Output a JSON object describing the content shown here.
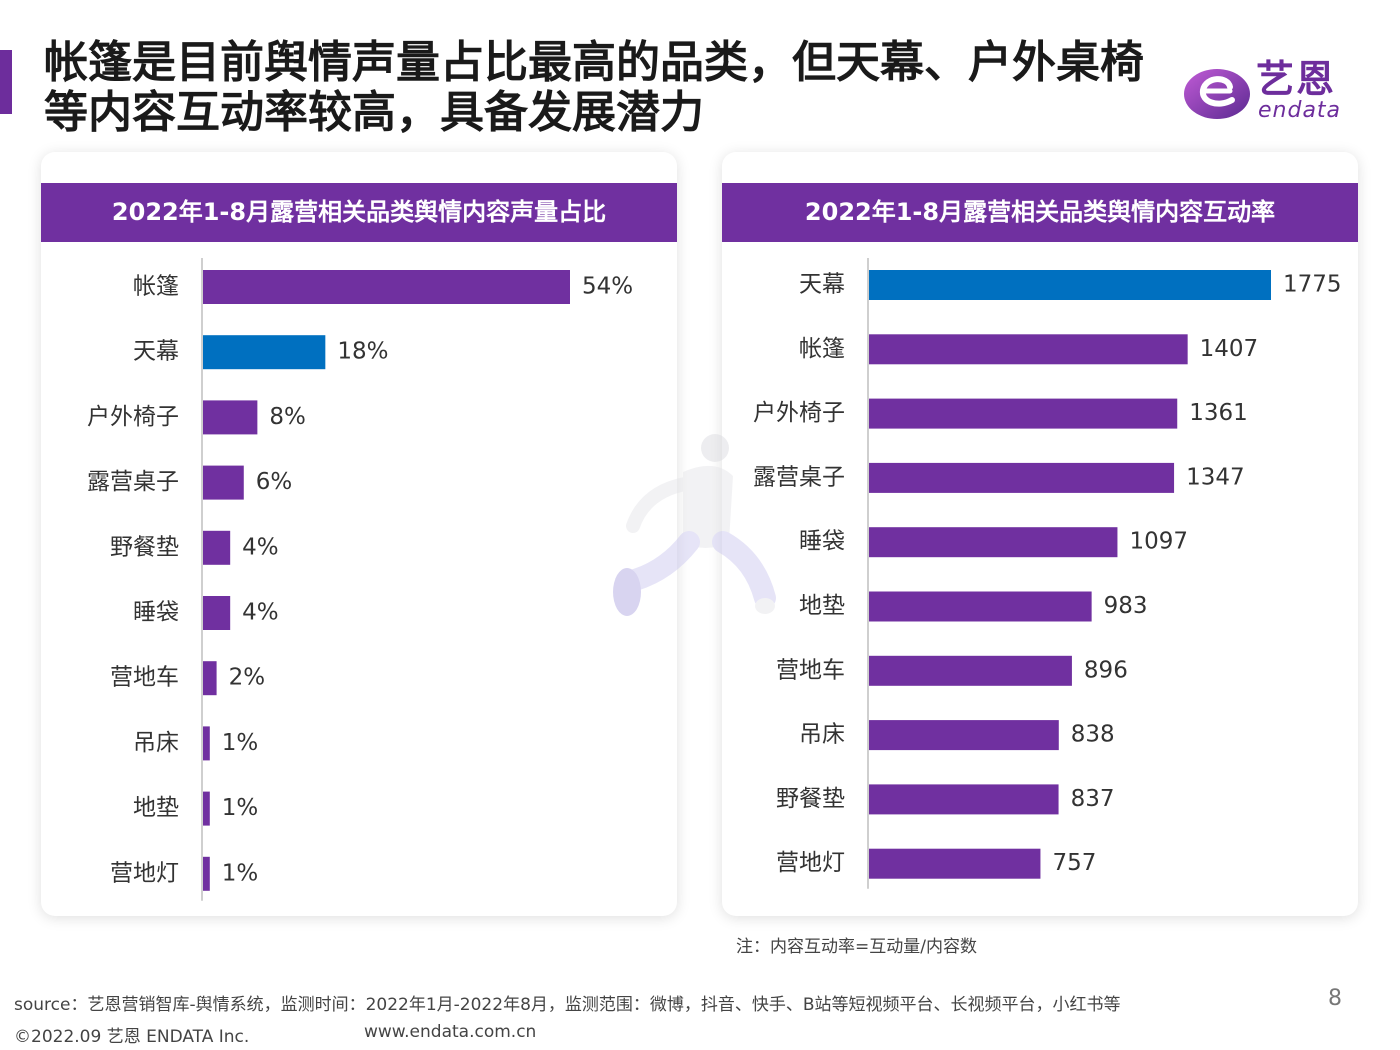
{
  "title": "帐篷是目前舆情声量占比最高的品类，但天幕、户外桌椅等内容互动率较高，具备发展潜力",
  "logo": {
    "cn": "艺恩",
    "en": "endata",
    "icon": "endata-e-logo"
  },
  "colors": {
    "purple": "#7030a0",
    "blue": "#0070c0"
  },
  "chart_data": [
    {
      "type": "bar",
      "orientation": "horizontal",
      "title": "2022年1-8月露营相关品类舆情内容声量占比",
      "categories": [
        "帐篷",
        "天幕",
        "户外椅子",
        "露营桌子",
        "野餐垫",
        "睡袋",
        "营地车",
        "吊床",
        "地垫",
        "营地灯"
      ],
      "values": [
        54,
        18,
        8,
        6,
        4,
        4,
        2,
        1,
        1,
        1
      ],
      "value_labels": [
        "54%",
        "18%",
        "8%",
        "6%",
        "4%",
        "4%",
        "2%",
        "1%",
        "1%",
        "1%"
      ],
      "highlight_category": "天幕",
      "xlim": [
        0,
        54
      ],
      "grid": false
    },
    {
      "type": "bar",
      "orientation": "horizontal",
      "title": "2022年1-8月露营相关品类舆情内容互动率",
      "categories": [
        "天幕",
        "帐篷",
        "户外椅子",
        "露营桌子",
        "睡袋",
        "地垫",
        "营地车",
        "吊床",
        "野餐垫",
        "营地灯"
      ],
      "values": [
        1775,
        1407,
        1361,
        1347,
        1097,
        983,
        896,
        838,
        837,
        757
      ],
      "value_labels": [
        "1775",
        "1407",
        "1361",
        "1347",
        "1097",
        "983",
        "896",
        "838",
        "837",
        "757"
      ],
      "highlight_category": "天幕",
      "xlim": [
        0,
        1775
      ],
      "grid": false
    }
  ],
  "note": "注：内容互动率=互动量/内容数",
  "footer": {
    "source": "source：艺恩营销智库-舆情系统，监测时间：2022年1月-2022年8月，监测范围：微博，抖音、快手、B站等短视频平台、长视频平台，小红书等",
    "copyright": "©2022.09 艺恩 ENDATA Inc.",
    "website": "www.endata.com.cn",
    "page": "8"
  }
}
